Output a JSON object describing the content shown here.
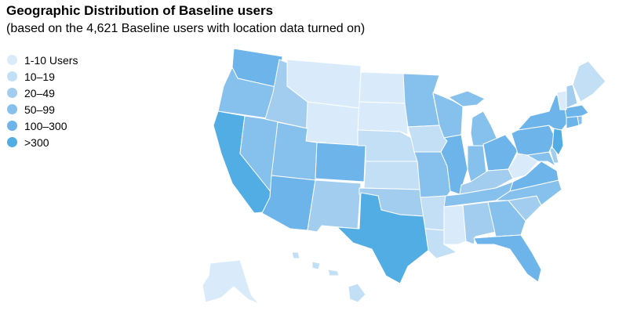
{
  "header": {
    "title": "Geographic Distribution of Baseline users",
    "subtitle": "(based on the 4,621 Baseline users with location data turned on)"
  },
  "legend": {
    "items": [
      {
        "label": "1-10 Users",
        "color": "#d9eafa"
      },
      {
        "label": "10–19",
        "color": "#c3dff6"
      },
      {
        "label": "20–49",
        "color": "#a3cdef"
      },
      {
        "label": "50–99",
        "color": "#86c0ec"
      },
      {
        "label": "100–300",
        "color": "#6cb4e9"
      },
      {
        "label": ">300",
        "color": "#52ade4"
      }
    ]
  },
  "map_data": {
    "region": "United States",
    "state_tiers": {
      "WA": 4,
      "OR": 3,
      "CA": 5,
      "NV": 3,
      "ID": 2,
      "MT": 0,
      "WY": 0,
      "UT": 3,
      "AZ": 4,
      "CO": 4,
      "NM": 2,
      "ND": 0,
      "SD": 0,
      "NE": 1,
      "KS": 1,
      "OK": 2,
      "TX": 5,
      "MN": 3,
      "IA": 1,
      "MO": 3,
      "AR": 1,
      "LA": 1,
      "WI": 3,
      "IL": 4,
      "MI": 3,
      "IN": 3,
      "OH": 4,
      "KY": 2,
      "TN": 3,
      "MS": 0,
      "AL": 2,
      "GA": 3,
      "FL": 4,
      "SC": 2,
      "NC": 3,
      "VA": 4,
      "WV": 0,
      "PA": 4,
      "NY": 4,
      "NJ": 5,
      "MD": 3,
      "DE": 2,
      "CT": 4,
      "RI": 3,
      "MA": 4,
      "VT": 0,
      "NH": 2,
      "ME": 1,
      "AK": 0,
      "HI": 1
    }
  }
}
